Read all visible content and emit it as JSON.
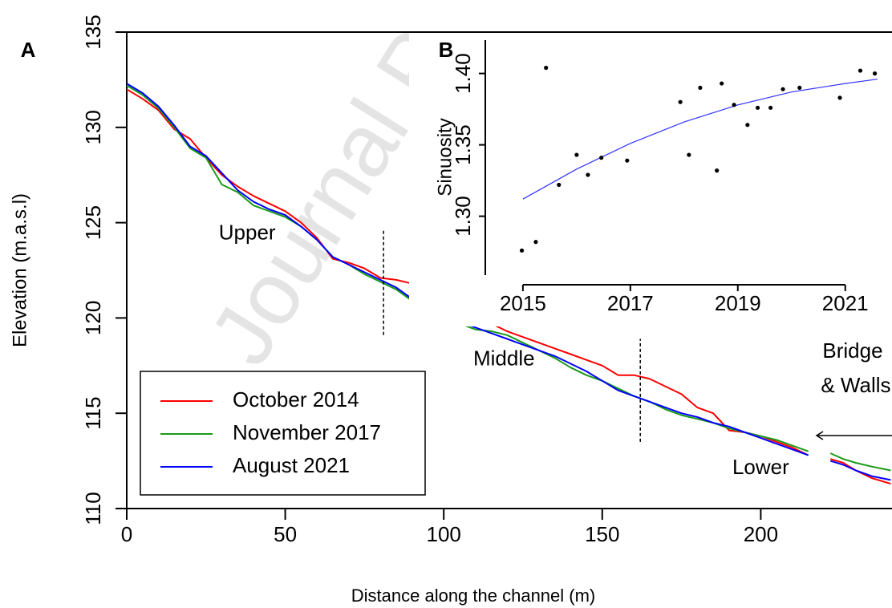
{
  "chart_data": [
    {
      "type": "line",
      "panel": "A",
      "xlabel": "Distance along the channel (m)",
      "ylabel": "Elevation (m.a.s.l)",
      "xlim": [
        0,
        241.4
      ],
      "ylim": [
        110,
        135
      ],
      "xticks": [
        0,
        50,
        100,
        150,
        200
      ],
      "yticks": [
        110,
        115,
        120,
        125,
        130,
        135
      ],
      "legend": "bottom-left",
      "x": [
        0,
        5,
        10,
        15,
        20,
        25,
        30,
        35,
        40,
        45,
        50,
        55,
        60,
        65,
        70,
        75,
        80,
        85,
        90,
        95,
        100,
        105,
        110,
        115,
        120,
        125,
        130,
        135,
        140,
        145,
        150,
        155,
        160,
        165,
        170,
        175,
        180,
        185,
        190,
        195,
        200,
        205,
        210,
        215,
        218.5,
        222,
        226,
        230,
        235,
        241
      ],
      "series": [
        {
          "name": "October 2014",
          "color": "#ff0000",
          "values": [
            132.0,
            131.5,
            130.9,
            129.9,
            129.4,
            128.4,
            127.5,
            126.9,
            126.4,
            126.0,
            125.6,
            125.0,
            124.2,
            123.1,
            122.9,
            122.6,
            122.1,
            122.0,
            121.8,
            121.2,
            120.7,
            120.3,
            119.9,
            119.7,
            119.3,
            119.0,
            118.7,
            118.4,
            118.1,
            117.8,
            117.5,
            117.0,
            117.0,
            116.8,
            116.4,
            116.0,
            115.3,
            115.0,
            114.1,
            114.0,
            113.8,
            113.5,
            113.2,
            112.8,
            null,
            112.6,
            112.4,
            112.0,
            111.6,
            111.3
          ]
        },
        {
          "name": "November 2017",
          "color": "#1a9a1a",
          "values": [
            132.2,
            131.7,
            131.0,
            130.0,
            128.9,
            128.4,
            127.0,
            126.6,
            125.9,
            125.6,
            125.3,
            124.8,
            124.1,
            123.2,
            122.8,
            122.3,
            121.9,
            121.5,
            120.9,
            120.4,
            120.0,
            119.7,
            119.4,
            119.3,
            119.1,
            118.7,
            118.3,
            117.9,
            117.4,
            117.0,
            116.7,
            116.3,
            115.9,
            115.6,
            115.2,
            114.9,
            114.7,
            114.5,
            114.2,
            114.0,
            113.8,
            113.6,
            113.3,
            113.0,
            null,
            112.9,
            112.6,
            112.4,
            112.2,
            112.0
          ]
        },
        {
          "name": "August 2021",
          "color": "#0000ff",
          "values": [
            132.3,
            131.8,
            131.1,
            130.1,
            129.0,
            128.5,
            127.6,
            126.7,
            126.1,
            125.7,
            125.4,
            124.8,
            124.1,
            123.2,
            122.8,
            122.4,
            122.0,
            121.6,
            121.0,
            120.6,
            120.2,
            119.8,
            119.5,
            119.2,
            118.9,
            118.6,
            118.3,
            118.0,
            117.6,
            117.2,
            116.7,
            116.2,
            115.9,
            115.6,
            115.3,
            115.0,
            114.8,
            114.5,
            114.3,
            114.0,
            113.7,
            113.4,
            113.1,
            112.8,
            null,
            112.5,
            112.3,
            112.0,
            111.7,
            111.5
          ]
        }
      ],
      "dividers": [
        {
          "x": 81,
          "y": [
            119.1,
            124.6
          ]
        },
        {
          "x": 162,
          "y": [
            113.5,
            118.9
          ]
        }
      ],
      "annotations": [
        {
          "text": "Upper",
          "x": 38,
          "y": 124.4
        },
        {
          "text": "Middle",
          "x": 119,
          "y": 117.8
        },
        {
          "text": "Lower",
          "x": 200,
          "y": 112.1
        },
        {
          "text": "Bridge",
          "x": 229,
          "y": 118.2
        },
        {
          "text": "& Walls",
          "x": 230,
          "y": 116.4
        }
      ],
      "watermark": "Journal P"
    },
    {
      "type": "scatter",
      "panel": "B",
      "ylabel": "Sinuosity",
      "xlim": [
        2014.3,
        2021.87
      ],
      "ylim": [
        1.252,
        1.429
      ],
      "xticks": [
        2015,
        2017,
        2019,
        2021
      ],
      "yticks": [
        {
          "value": 1.3,
          "label": "1.30"
        },
        1.35,
        {
          "value": 1.4,
          "label": "1.40"
        }
      ],
      "color": "#000000",
      "x": [
        2014.98,
        2015.24,
        2015.43,
        2015.67,
        2016.0,
        2016.21,
        2016.46,
        2016.94,
        2017.93,
        2018.09,
        2018.3,
        2018.61,
        2018.7,
        2018.93,
        2019.18,
        2019.37,
        2019.61,
        2019.84,
        2020.15,
        2020.9,
        2021.28,
        2021.55
      ],
      "values": [
        1.276,
        1.282,
        1.404,
        1.322,
        1.343,
        1.329,
        1.341,
        1.339,
        1.38,
        1.343,
        1.39,
        1.332,
        1.393,
        1.378,
        1.364,
        1.376,
        1.376,
        1.389,
        1.39,
        1.383,
        1.402,
        1.4
      ],
      "fit": {
        "color": "#3333ff",
        "x": [
          2015,
          2016,
          2017,
          2018,
          2019,
          2020,
          2021,
          2021.6
        ],
        "values": [
          1.312,
          1.333,
          1.351,
          1.366,
          1.378,
          1.387,
          1.393,
          1.396
        ]
      }
    }
  ]
}
